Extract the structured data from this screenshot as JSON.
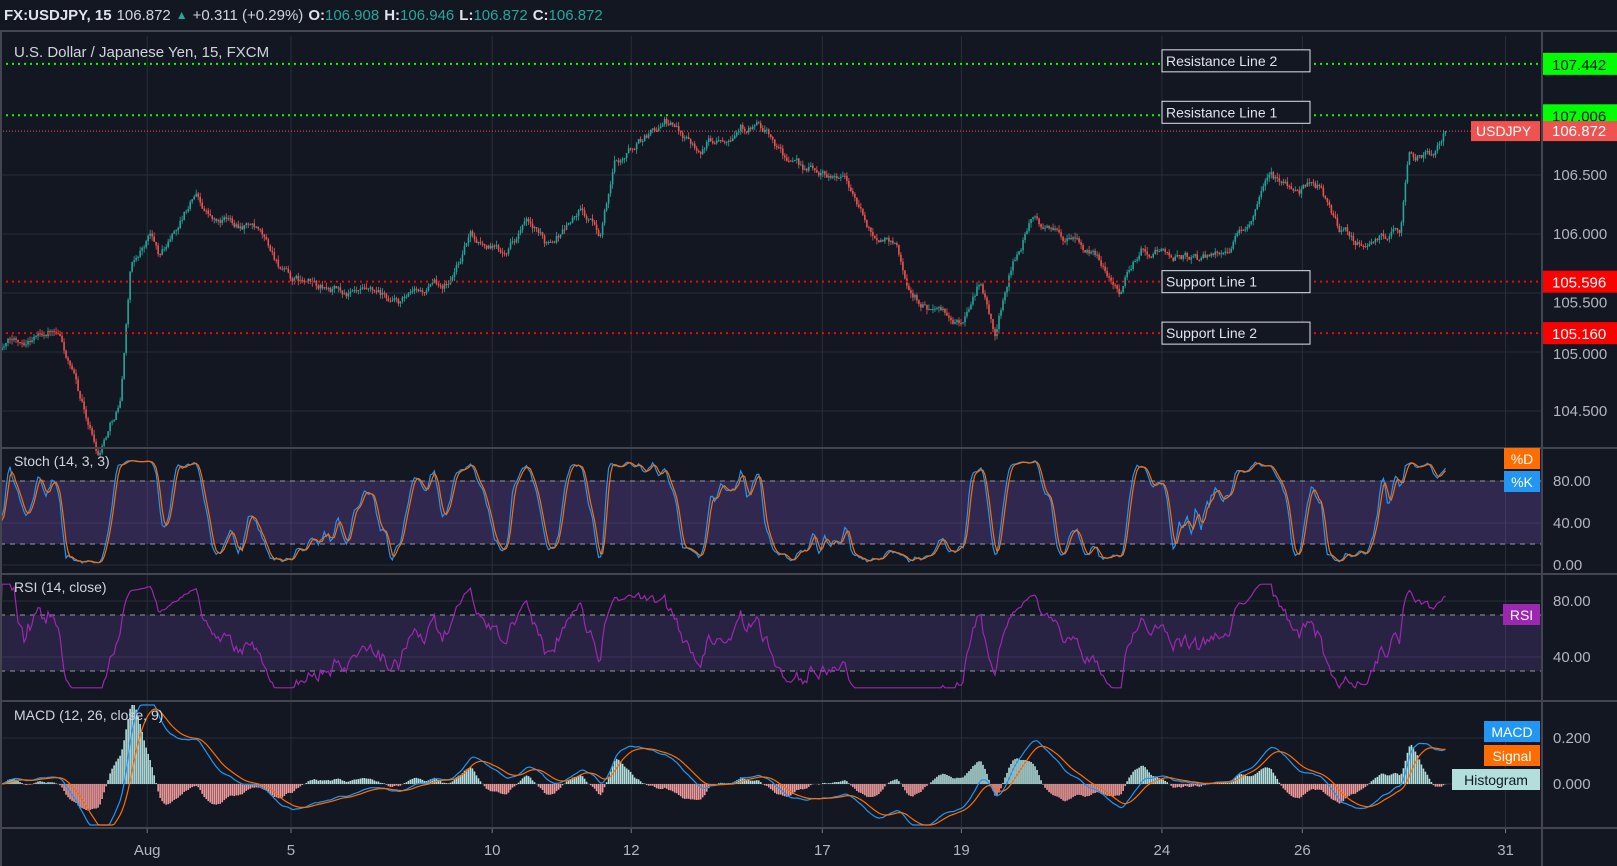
{
  "header": {
    "symbol": "FX:USDJPY, 15",
    "last": "106.872",
    "change": "+0.311 (+0.29%)",
    "o_label": "O:",
    "o": "106.908",
    "h_label": "H:",
    "h": "106.946",
    "l_label": "L:",
    "l": "106.872",
    "c_label": "C:",
    "c": "106.872",
    "up_icon": "triangle-up-icon"
  },
  "colors": {
    "background": "#131722",
    "up": "#26a69a",
    "down": "#ef5350",
    "resistance": "#00ff00",
    "support": "#ff0000",
    "stoch_k": "#2196f3",
    "stoch_d": "#ff6d00",
    "rsi": "#9c27b0",
    "macd": "#2196f3",
    "signal": "#ff6d00",
    "hist_up": "#b2dfdb",
    "hist_down": "#ef9a9a"
  },
  "chart_data": {
    "type": "candlestick",
    "title": "U.S. Dollar / Japanese Yen, 15, FXCM",
    "x_unit": "trading days",
    "x_range": [
      0,
      22.84
    ],
    "ylim": [
      104.1,
      107.65
    ],
    "grid": true,
    "x_ticks": [
      {
        "label": "Aug",
        "t": 2.18
      },
      {
        "label": "5",
        "t": 4.31
      },
      {
        "label": "10",
        "t": 7.29
      },
      {
        "label": "12",
        "t": 9.35
      },
      {
        "label": "17",
        "t": 12.18
      },
      {
        "label": "19",
        "t": 14.24
      },
      {
        "label": "24",
        "t": 17.21
      },
      {
        "label": "26",
        "t": 19.29
      },
      {
        "label": "31",
        "t": 22.3
      }
    ],
    "y_ticks": [
      {
        "label": "106.500",
        "v": 106.5
      },
      {
        "label": "106.000",
        "v": 106.0
      },
      {
        "label": "105.500",
        "v": 105.5
      },
      {
        "label": "105.000",
        "v": 105.0
      },
      {
        "label": "104.500",
        "v": 104.5
      }
    ],
    "price_path": [
      [
        0,
        105.05
      ],
      [
        0.74,
        105.2
      ],
      [
        0.89,
        105.1
      ],
      [
        1.45,
        104.15
      ],
      [
        1.78,
        104.6
      ],
      [
        1.93,
        105.7
      ],
      [
        2.22,
        106.0
      ],
      [
        2.37,
        105.8
      ],
      [
        2.89,
        106.35
      ],
      [
        3.19,
        106.1
      ],
      [
        3.7,
        106.1
      ],
      [
        4.3,
        105.6
      ],
      [
        5.04,
        105.5
      ],
      [
        5.93,
        105.4
      ],
      [
        6.67,
        105.6
      ],
      [
        6.96,
        106.0
      ],
      [
        7.41,
        105.85
      ],
      [
        7.78,
        106.1
      ],
      [
        8.07,
        105.9
      ],
      [
        8.59,
        106.2
      ],
      [
        8.89,
        106.0
      ],
      [
        9.11,
        106.6
      ],
      [
        9.48,
        106.8
      ],
      [
        9.85,
        106.95
      ],
      [
        10.37,
        106.75
      ],
      [
        10.96,
        106.95
      ],
      [
        11.26,
        106.9
      ],
      [
        11.78,
        106.55
      ],
      [
        12.52,
        106.5
      ],
      [
        12.89,
        106.0
      ],
      [
        13.26,
        105.95
      ],
      [
        13.48,
        105.5
      ],
      [
        14.22,
        105.2
      ],
      [
        14.52,
        105.6
      ],
      [
        14.74,
        105.15
      ],
      [
        14.96,
        105.7
      ],
      [
        15.26,
        106.1
      ],
      [
        15.7,
        106.0
      ],
      [
        16.3,
        105.75
      ],
      [
        16.59,
        105.55
      ],
      [
        16.89,
        105.9
      ],
      [
        17.33,
        105.85
      ],
      [
        17.78,
        105.75
      ],
      [
        18.37,
        106.0
      ],
      [
        18.59,
        106.2
      ],
      [
        18.81,
        106.45
      ],
      [
        19.26,
        106.4
      ],
      [
        19.56,
        106.4
      ],
      [
        19.85,
        106.0
      ],
      [
        20.3,
        105.9
      ],
      [
        20.74,
        106.05
      ],
      [
        20.86,
        106.7
      ],
      [
        21.19,
        106.65
      ],
      [
        21.41,
        106.872
      ]
    ],
    "horizontal_lines": [
      {
        "name": "Resistance Line 2",
        "value": 107.442,
        "label": "107.442",
        "kind": "resistance"
      },
      {
        "name": "Resistance Line 1",
        "value": 107.006,
        "label": "107.006",
        "kind": "resistance"
      },
      {
        "name": "Support Line 1",
        "value": 105.596,
        "label": "105.596",
        "kind": "support"
      },
      {
        "name": "Support Line 2",
        "value": 105.16,
        "label": "105.160",
        "kind": "support"
      }
    ],
    "current_price": {
      "symbol": "USDJPY",
      "value": 106.872,
      "label": "106.872"
    },
    "indicators": {
      "stoch": {
        "title": "Stoch (14, 3, 3)",
        "k_label": "%K",
        "d_label": "%D",
        "ylim": [
          0,
          100
        ],
        "band": [
          20,
          80
        ],
        "ticks": [
          {
            "label": "80.00",
            "v": 80
          },
          {
            "label": "40.00",
            "v": 40
          },
          {
            "label": "0.00",
            "v": 0
          }
        ]
      },
      "rsi": {
        "title": "RSI (14, close)",
        "label": "RSI",
        "ylim": [
          18,
          92
        ],
        "band": [
          30,
          70
        ],
        "ticks": [
          {
            "label": "80.00",
            "v": 80
          },
          {
            "label": "40.00",
            "v": 40
          }
        ]
      },
      "macd": {
        "title": "MACD (12, 26, close, 9)",
        "macd_label": "MACD",
        "signal_label": "Signal",
        "hist_label": "Histogram",
        "ylim": [
          -0.2,
          0.3
        ],
        "ticks": [
          {
            "label": "0.200",
            "v": 0.2
          },
          {
            "label": "0.000",
            "v": 0
          }
        ]
      }
    }
  }
}
